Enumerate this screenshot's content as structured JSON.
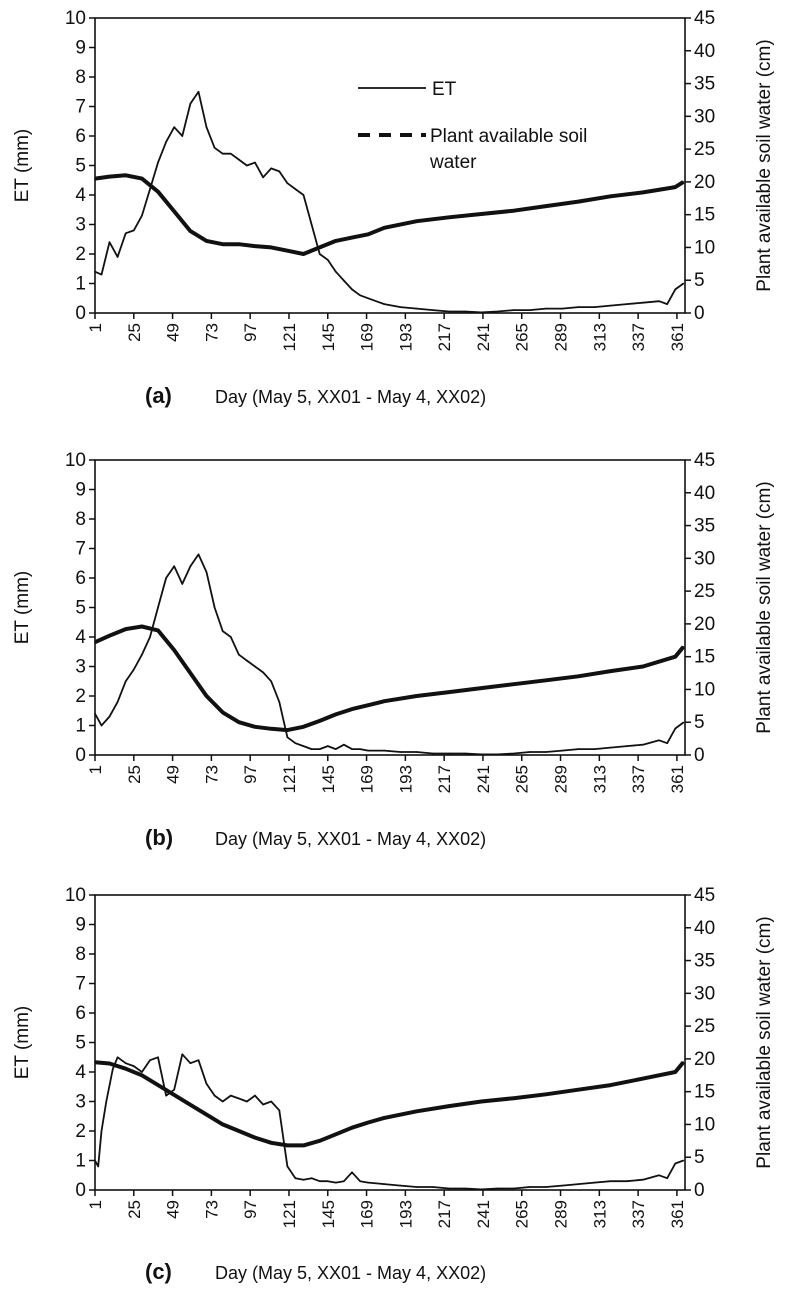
{
  "figure": {
    "x_tick_labels": [
      "1",
      "25",
      "49",
      "73",
      "97",
      "121",
      "145",
      "169",
      "193",
      "217",
      "241",
      "265",
      "289",
      "313",
      "337",
      "361"
    ],
    "et_ticks": [
      0,
      1,
      2,
      3,
      4,
      5,
      6,
      7,
      8,
      9,
      10
    ],
    "soil_ticks": [
      0,
      5,
      10,
      15,
      20,
      25,
      30,
      35,
      40,
      45
    ],
    "legend": {
      "et": "ET",
      "soil": "Plant available soil water"
    }
  },
  "chart_data": [
    {
      "type": "line",
      "panel_label": "(a)",
      "xlabel": "Day (May 5, XX01 - May 4, XX02)",
      "ylabel": "ET (mm)",
      "y2label": "Plant available soil water (cm)",
      "xlim": [
        1,
        366
      ],
      "ylim": [
        0,
        10
      ],
      "y2lim": [
        0,
        45
      ],
      "legend_position": "top-center",
      "series": [
        {
          "name": "ET",
          "axis": "left",
          "style": "solid",
          "x": [
            1,
            5,
            10,
            15,
            20,
            25,
            30,
            35,
            40,
            45,
            50,
            55,
            60,
            65,
            70,
            75,
            80,
            85,
            90,
            95,
            100,
            105,
            110,
            115,
            120,
            125,
            130,
            135,
            140,
            145,
            150,
            155,
            160,
            165,
            170,
            180,
            190,
            200,
            210,
            220,
            230,
            240,
            250,
            260,
            270,
            280,
            290,
            300,
            310,
            320,
            330,
            340,
            350,
            355,
            360,
            365
          ],
          "y": [
            1.4,
            1.3,
            2.4,
            1.9,
            2.7,
            2.8,
            3.3,
            4.2,
            5.1,
            5.8,
            6.3,
            6.0,
            7.1,
            7.5,
            6.3,
            5.6,
            5.4,
            5.4,
            5.2,
            5.0,
            5.1,
            4.6,
            4.9,
            4.8,
            4.4,
            4.2,
            4.0,
            3.0,
            2.0,
            1.8,
            1.4,
            1.1,
            0.8,
            0.6,
            0.5,
            0.3,
            0.2,
            0.15,
            0.1,
            0.05,
            0.05,
            0.02,
            0.05,
            0.1,
            0.1,
            0.15,
            0.15,
            0.2,
            0.2,
            0.25,
            0.3,
            0.35,
            0.4,
            0.3,
            0.8,
            1.0
          ]
        },
        {
          "name": "Plant available soil water",
          "axis": "right",
          "style": "dashed",
          "x": [
            1,
            10,
            20,
            30,
            40,
            50,
            60,
            70,
            80,
            90,
            100,
            110,
            120,
            130,
            140,
            150,
            160,
            170,
            180,
            200,
            220,
            240,
            260,
            280,
            300,
            320,
            340,
            360,
            365
          ],
          "y": [
            20.5,
            20.8,
            21.0,
            20.5,
            18.5,
            15.5,
            12.5,
            11.0,
            10.5,
            10.5,
            10.2,
            10.0,
            9.5,
            9.0,
            10.0,
            11.0,
            11.5,
            12.0,
            13.0,
            14.0,
            14.6,
            15.1,
            15.6,
            16.3,
            17.0,
            17.8,
            18.4,
            19.2,
            20.0
          ]
        }
      ]
    },
    {
      "type": "line",
      "panel_label": "(b)",
      "xlabel": "Day (May 5, XX01 - May 4, XX02)",
      "ylabel": "ET (mm)",
      "y2label": "Plant available soil water (cm)",
      "xlim": [
        1,
        366
      ],
      "ylim": [
        0,
        10
      ],
      "y2lim": [
        0,
        45
      ],
      "series": [
        {
          "name": "ET",
          "axis": "left",
          "style": "solid",
          "x": [
            1,
            5,
            10,
            15,
            20,
            25,
            30,
            35,
            40,
            45,
            50,
            55,
            60,
            65,
            70,
            75,
            80,
            85,
            90,
            95,
            100,
            105,
            110,
            115,
            120,
            125,
            130,
            135,
            140,
            145,
            150,
            155,
            160,
            165,
            170,
            180,
            190,
            200,
            210,
            220,
            230,
            240,
            250,
            260,
            270,
            280,
            290,
            300,
            310,
            320,
            330,
            340,
            350,
            355,
            360,
            365
          ],
          "y": [
            1.4,
            1.0,
            1.3,
            1.8,
            2.5,
            2.9,
            3.4,
            4.0,
            5.0,
            6.0,
            6.4,
            5.8,
            6.4,
            6.8,
            6.2,
            5.0,
            4.2,
            4.0,
            3.4,
            3.2,
            3.0,
            2.8,
            2.5,
            1.8,
            0.6,
            0.4,
            0.3,
            0.2,
            0.2,
            0.3,
            0.2,
            0.35,
            0.2,
            0.2,
            0.15,
            0.15,
            0.1,
            0.1,
            0.05,
            0.05,
            0.05,
            0.02,
            0.02,
            0.05,
            0.1,
            0.1,
            0.15,
            0.2,
            0.2,
            0.25,
            0.3,
            0.35,
            0.5,
            0.4,
            0.9,
            1.1
          ]
        },
        {
          "name": "Plant available soil water",
          "axis": "right",
          "style": "dashed",
          "x": [
            1,
            10,
            20,
            30,
            40,
            50,
            60,
            70,
            80,
            90,
            100,
            110,
            120,
            130,
            140,
            150,
            160,
            170,
            180,
            200,
            220,
            240,
            260,
            280,
            300,
            320,
            340,
            360,
            365
          ],
          "y": [
            17.2,
            18.2,
            19.2,
            19.6,
            19.0,
            16.0,
            12.5,
            9.0,
            6.5,
            5.0,
            4.3,
            4.0,
            3.8,
            4.3,
            5.2,
            6.2,
            7.0,
            7.6,
            8.2,
            9.0,
            9.6,
            10.2,
            10.8,
            11.4,
            12.0,
            12.8,
            13.5,
            15.0,
            16.5
          ]
        }
      ]
    },
    {
      "type": "line",
      "panel_label": "(c)",
      "xlabel": "Day (May 5, XX01 - May 4, XX02)",
      "ylabel": "ET (mm)",
      "y2label": "Plant available soil water (cm)",
      "xlim": [
        1,
        366
      ],
      "ylim": [
        0,
        10
      ],
      "y2lim": [
        0,
        45
      ],
      "series": [
        {
          "name": "ET",
          "axis": "left",
          "style": "solid",
          "x": [
            1,
            3,
            5,
            8,
            12,
            15,
            20,
            25,
            30,
            35,
            40,
            45,
            50,
            55,
            60,
            65,
            70,
            75,
            80,
            85,
            90,
            95,
            100,
            105,
            110,
            115,
            120,
            125,
            130,
            135,
            140,
            145,
            150,
            155,
            160,
            165,
            170,
            180,
            190,
            200,
            210,
            220,
            230,
            240,
            250,
            260,
            270,
            280,
            290,
            300,
            310,
            320,
            330,
            340,
            350,
            355,
            360,
            365
          ],
          "y": [
            1.0,
            0.8,
            2.0,
            3.0,
            4.1,
            4.5,
            4.3,
            4.2,
            4.0,
            4.4,
            4.5,
            3.2,
            3.4,
            4.6,
            4.3,
            4.4,
            3.6,
            3.2,
            3.0,
            3.2,
            3.1,
            3.0,
            3.2,
            2.9,
            3.0,
            2.7,
            0.8,
            0.4,
            0.35,
            0.4,
            0.3,
            0.3,
            0.25,
            0.3,
            0.6,
            0.3,
            0.25,
            0.2,
            0.15,
            0.1,
            0.1,
            0.05,
            0.05,
            0.02,
            0.05,
            0.05,
            0.1,
            0.1,
            0.15,
            0.2,
            0.25,
            0.3,
            0.3,
            0.35,
            0.5,
            0.4,
            0.9,
            1.0
          ]
        },
        {
          "name": "Plant available soil water",
          "axis": "right",
          "style": "dashed",
          "x": [
            1,
            10,
            20,
            30,
            40,
            50,
            60,
            70,
            80,
            90,
            100,
            110,
            120,
            130,
            140,
            150,
            160,
            170,
            180,
            200,
            220,
            240,
            260,
            280,
            300,
            320,
            340,
            360,
            365
          ],
          "y": [
            19.5,
            19.3,
            18.5,
            17.5,
            16.0,
            14.5,
            13.0,
            11.5,
            10.0,
            9.0,
            8.0,
            7.2,
            6.8,
            6.8,
            7.5,
            8.5,
            9.5,
            10.3,
            11.0,
            12.0,
            12.8,
            13.5,
            14.0,
            14.6,
            15.3,
            16.0,
            17.0,
            18.0,
            19.5
          ]
        }
      ]
    }
  ]
}
